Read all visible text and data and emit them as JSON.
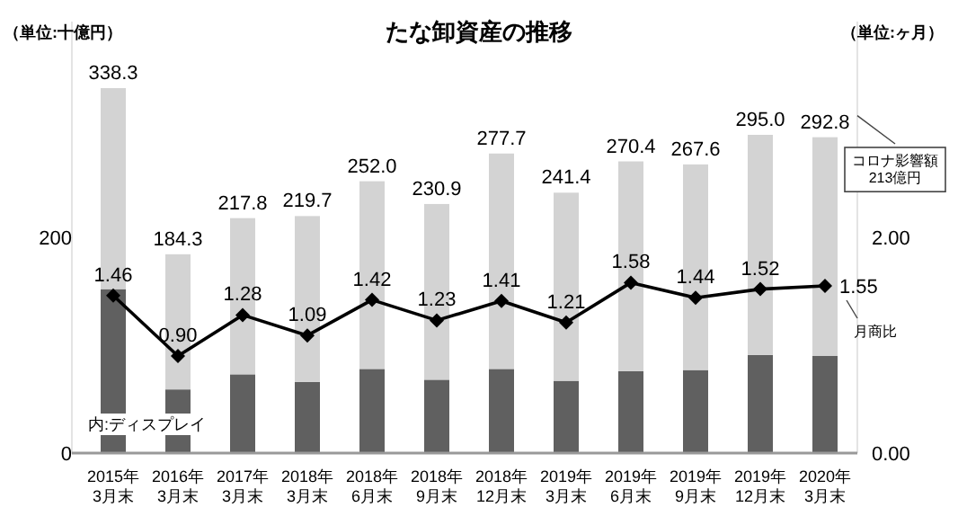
{
  "chart_data": {
    "type": "bar",
    "title": "たな卸資産の推移",
    "stacked": true,
    "categories": [
      "2015年\n3月末",
      "2016年\n3月末",
      "2017年\n3月末",
      "2018年\n3月末",
      "2018年\n6月末",
      "2018年\n9月末",
      "2018年\n12月末",
      "2019年\n3月末",
      "2019年\n6月末",
      "2019年\n9月末",
      "2019年\n12月末",
      "2020年\n3月末"
    ],
    "series": [
      {
        "name": "内:ディスプレイ",
        "color": "#606060",
        "values": [
          152,
          59,
          73,
          66,
          78,
          68,
          78,
          67,
          76,
          77,
          91,
          90
        ]
      },
      {
        "color": "#d3d3d3",
        "values": [
          186.3,
          125.3,
          144.8,
          153.7,
          174,
          162.9,
          199.7,
          174.4,
          194.4,
          190.6,
          204,
          202.8
        ]
      },
      {
        "name": "月商比",
        "type": "line",
        "axis": "y2",
        "color": "#000000",
        "marker": "diamond",
        "values": [
          1.46,
          0.9,
          1.28,
          1.09,
          1.42,
          1.23,
          1.41,
          1.21,
          1.58,
          1.44,
          1.52,
          1.55
        ],
        "value_labels": [
          "1.46",
          "0.90",
          "1.28",
          "1.09",
          "1.42",
          "1.23",
          "1.41",
          "1.21",
          "1.58",
          "1.44",
          "1.52",
          "1.55"
        ]
      }
    ],
    "totals": [
      "338.3",
      "184.3",
      "217.8",
      "219.7",
      "252.0",
      "230.9",
      "277.7",
      "241.4",
      "270.4",
      "267.6",
      "295.0",
      "292.8"
    ],
    "ylim": [
      0,
      400
    ],
    "yticks": [
      0,
      200
    ],
    "y2lim": [
      0,
      4
    ],
    "y2ticks": [
      {
        "value": 0,
        "label": "0.00"
      },
      {
        "value": 2,
        "label": "2.00"
      }
    ],
    "grid": false,
    "legend": false,
    "annotations": [
      "（単位:十億円）",
      "（単位:ヶ月）",
      {
        "text": "コロナ影響額\n213億円",
        "x": "2020年\n3月末",
        "y": 292.8
      }
    ]
  }
}
